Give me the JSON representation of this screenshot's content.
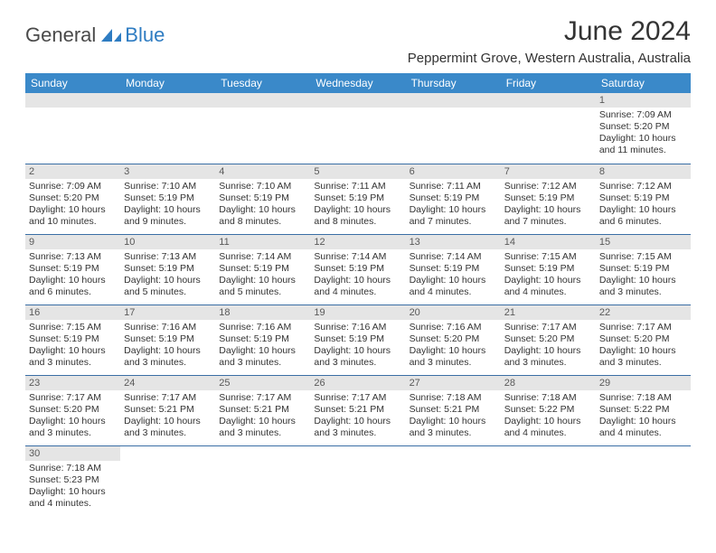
{
  "logo": {
    "dark": "General",
    "blue": "Blue"
  },
  "title": "June 2024",
  "location": "Peppermint Grove, Western Australia, Australia",
  "colors": {
    "header_bg": "#3a89c9",
    "header_text": "#ffffff",
    "daynum_bg": "#e5e5e5",
    "daynum_text": "#595959",
    "border": "#3a6ea5",
    "body_text": "#333333",
    "logo_dark": "#4a4a4a",
    "logo_blue": "#2e7cc2"
  },
  "weekdays": [
    "Sunday",
    "Monday",
    "Tuesday",
    "Wednesday",
    "Thursday",
    "Friday",
    "Saturday"
  ],
  "weeks": [
    [
      null,
      null,
      null,
      null,
      null,
      null,
      {
        "n": "1",
        "sr": "Sunrise: 7:09 AM",
        "ss": "Sunset: 5:20 PM",
        "dl": "Daylight: 10 hours and 11 minutes."
      }
    ],
    [
      {
        "n": "2",
        "sr": "Sunrise: 7:09 AM",
        "ss": "Sunset: 5:20 PM",
        "dl": "Daylight: 10 hours and 10 minutes."
      },
      {
        "n": "3",
        "sr": "Sunrise: 7:10 AM",
        "ss": "Sunset: 5:19 PM",
        "dl": "Daylight: 10 hours and 9 minutes."
      },
      {
        "n": "4",
        "sr": "Sunrise: 7:10 AM",
        "ss": "Sunset: 5:19 PM",
        "dl": "Daylight: 10 hours and 8 minutes."
      },
      {
        "n": "5",
        "sr": "Sunrise: 7:11 AM",
        "ss": "Sunset: 5:19 PM",
        "dl": "Daylight: 10 hours and 8 minutes."
      },
      {
        "n": "6",
        "sr": "Sunrise: 7:11 AM",
        "ss": "Sunset: 5:19 PM",
        "dl": "Daylight: 10 hours and 7 minutes."
      },
      {
        "n": "7",
        "sr": "Sunrise: 7:12 AM",
        "ss": "Sunset: 5:19 PM",
        "dl": "Daylight: 10 hours and 7 minutes."
      },
      {
        "n": "8",
        "sr": "Sunrise: 7:12 AM",
        "ss": "Sunset: 5:19 PM",
        "dl": "Daylight: 10 hours and 6 minutes."
      }
    ],
    [
      {
        "n": "9",
        "sr": "Sunrise: 7:13 AM",
        "ss": "Sunset: 5:19 PM",
        "dl": "Daylight: 10 hours and 6 minutes."
      },
      {
        "n": "10",
        "sr": "Sunrise: 7:13 AM",
        "ss": "Sunset: 5:19 PM",
        "dl": "Daylight: 10 hours and 5 minutes."
      },
      {
        "n": "11",
        "sr": "Sunrise: 7:14 AM",
        "ss": "Sunset: 5:19 PM",
        "dl": "Daylight: 10 hours and 5 minutes."
      },
      {
        "n": "12",
        "sr": "Sunrise: 7:14 AM",
        "ss": "Sunset: 5:19 PM",
        "dl": "Daylight: 10 hours and 4 minutes."
      },
      {
        "n": "13",
        "sr": "Sunrise: 7:14 AM",
        "ss": "Sunset: 5:19 PM",
        "dl": "Daylight: 10 hours and 4 minutes."
      },
      {
        "n": "14",
        "sr": "Sunrise: 7:15 AM",
        "ss": "Sunset: 5:19 PM",
        "dl": "Daylight: 10 hours and 4 minutes."
      },
      {
        "n": "15",
        "sr": "Sunrise: 7:15 AM",
        "ss": "Sunset: 5:19 PM",
        "dl": "Daylight: 10 hours and 3 minutes."
      }
    ],
    [
      {
        "n": "16",
        "sr": "Sunrise: 7:15 AM",
        "ss": "Sunset: 5:19 PM",
        "dl": "Daylight: 10 hours and 3 minutes."
      },
      {
        "n": "17",
        "sr": "Sunrise: 7:16 AM",
        "ss": "Sunset: 5:19 PM",
        "dl": "Daylight: 10 hours and 3 minutes."
      },
      {
        "n": "18",
        "sr": "Sunrise: 7:16 AM",
        "ss": "Sunset: 5:19 PM",
        "dl": "Daylight: 10 hours and 3 minutes."
      },
      {
        "n": "19",
        "sr": "Sunrise: 7:16 AM",
        "ss": "Sunset: 5:19 PM",
        "dl": "Daylight: 10 hours and 3 minutes."
      },
      {
        "n": "20",
        "sr": "Sunrise: 7:16 AM",
        "ss": "Sunset: 5:20 PM",
        "dl": "Daylight: 10 hours and 3 minutes."
      },
      {
        "n": "21",
        "sr": "Sunrise: 7:17 AM",
        "ss": "Sunset: 5:20 PM",
        "dl": "Daylight: 10 hours and 3 minutes."
      },
      {
        "n": "22",
        "sr": "Sunrise: 7:17 AM",
        "ss": "Sunset: 5:20 PM",
        "dl": "Daylight: 10 hours and 3 minutes."
      }
    ],
    [
      {
        "n": "23",
        "sr": "Sunrise: 7:17 AM",
        "ss": "Sunset: 5:20 PM",
        "dl": "Daylight: 10 hours and 3 minutes."
      },
      {
        "n": "24",
        "sr": "Sunrise: 7:17 AM",
        "ss": "Sunset: 5:21 PM",
        "dl": "Daylight: 10 hours and 3 minutes."
      },
      {
        "n": "25",
        "sr": "Sunrise: 7:17 AM",
        "ss": "Sunset: 5:21 PM",
        "dl": "Daylight: 10 hours and 3 minutes."
      },
      {
        "n": "26",
        "sr": "Sunrise: 7:17 AM",
        "ss": "Sunset: 5:21 PM",
        "dl": "Daylight: 10 hours and 3 minutes."
      },
      {
        "n": "27",
        "sr": "Sunrise: 7:18 AM",
        "ss": "Sunset: 5:21 PM",
        "dl": "Daylight: 10 hours and 3 minutes."
      },
      {
        "n": "28",
        "sr": "Sunrise: 7:18 AM",
        "ss": "Sunset: 5:22 PM",
        "dl": "Daylight: 10 hours and 4 minutes."
      },
      {
        "n": "29",
        "sr": "Sunrise: 7:18 AM",
        "ss": "Sunset: 5:22 PM",
        "dl": "Daylight: 10 hours and 4 minutes."
      }
    ],
    [
      {
        "n": "30",
        "sr": "Sunrise: 7:18 AM",
        "ss": "Sunset: 5:23 PM",
        "dl": "Daylight: 10 hours and 4 minutes."
      },
      null,
      null,
      null,
      null,
      null,
      null
    ]
  ]
}
